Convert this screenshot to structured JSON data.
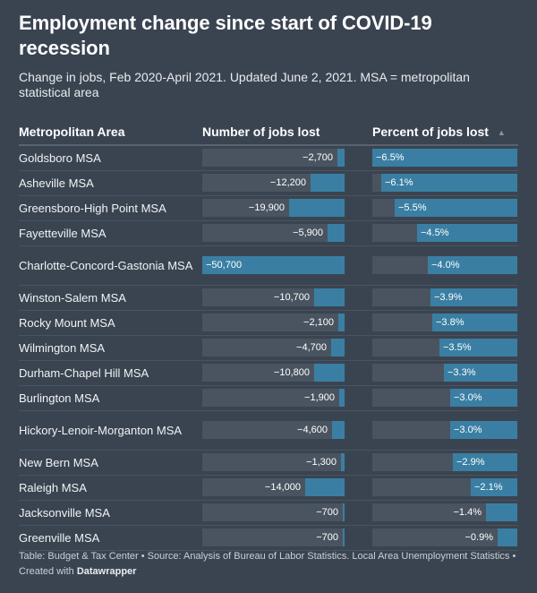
{
  "title": "Employment change since start of COVID-19 recession",
  "subtitle": "Change in jobs, Feb 2020-April 2021. Updated June 2, 2021. MSA = metropolitan statistical area",
  "columns": {
    "area": "Metropolitan Area",
    "jobs": "Number of jobs lost",
    "pct": "Percent of jobs lost"
  },
  "footer": {
    "text": "Table: Budget & Tax Center • Source: Analysis of Bureau of Labor Statistics. Local Area Unemployment Statistics • Created with ",
    "brand": "Datawrapper"
  },
  "colors": {
    "background": "#3a4451",
    "bar": "#3a7fa3",
    "track": "#4a5461"
  },
  "chart_data": {
    "type": "table",
    "sort": "Percent of jobs lost, descending",
    "rows": [
      {
        "area": "Goldsboro MSA",
        "jobs": -2700,
        "jobs_label": "−2,700",
        "pct": -6.5,
        "pct_label": "−6.5%"
      },
      {
        "area": "Asheville MSA",
        "jobs": -12200,
        "jobs_label": "−12,200",
        "pct": -6.1,
        "pct_label": "−6.1%"
      },
      {
        "area": "Greensboro-High Point MSA",
        "jobs": -19900,
        "jobs_label": "−19,900",
        "pct": -5.5,
        "pct_label": "−5.5%"
      },
      {
        "area": "Fayetteville MSA",
        "jobs": -5900,
        "jobs_label": "−5,900",
        "pct": -4.5,
        "pct_label": "−4.5%"
      },
      {
        "area": "Charlotte-Concord-Gastonia MSA",
        "jobs": -50700,
        "jobs_label": "−50,700",
        "pct": -4.0,
        "pct_label": "−4.0%"
      },
      {
        "area": "Winston-Salem MSA",
        "jobs": -10700,
        "jobs_label": "−10,700",
        "pct": -3.9,
        "pct_label": "−3.9%"
      },
      {
        "area": "Rocky Mount MSA",
        "jobs": -2100,
        "jobs_label": "−2,100",
        "pct": -3.8,
        "pct_label": "−3.8%"
      },
      {
        "area": "Wilmington MSA",
        "jobs": -4700,
        "jobs_label": "−4,700",
        "pct": -3.5,
        "pct_label": "−3.5%"
      },
      {
        "area": "Durham-Chapel Hill MSA",
        "jobs": -10800,
        "jobs_label": "−10,800",
        "pct": -3.3,
        "pct_label": "−3.3%"
      },
      {
        "area": "Burlington MSA",
        "jobs": -1900,
        "jobs_label": "−1,900",
        "pct": -3.0,
        "pct_label": "−3.0%"
      },
      {
        "area": "Hickory-Lenoir-Morganton MSA",
        "jobs": -4600,
        "jobs_label": "−4,600",
        "pct": -3.0,
        "pct_label": "−3.0%"
      },
      {
        "area": "New Bern MSA",
        "jobs": -1300,
        "jobs_label": "−1,300",
        "pct": -2.9,
        "pct_label": "−2.9%"
      },
      {
        "area": "Raleigh MSA",
        "jobs": -14000,
        "jobs_label": "−14,000",
        "pct": -2.1,
        "pct_label": "−2.1%"
      },
      {
        "area": "Jacksonville MSA",
        "jobs": -700,
        "jobs_label": "−700",
        "pct": -1.4,
        "pct_label": "−1.4%"
      },
      {
        "area": "Greenville MSA",
        "jobs": -700,
        "jobs_label": "−700",
        "pct": -0.9,
        "pct_label": "−0.9%"
      }
    ]
  }
}
